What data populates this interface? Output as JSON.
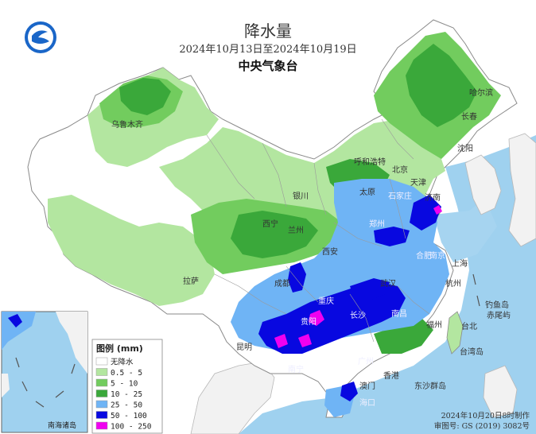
{
  "title": {
    "main": "降水量",
    "date_range": "2024年10月13日至2024年10月19日",
    "org": "中央气象台"
  },
  "legend": {
    "title": "图例 (mm)",
    "items": [
      {
        "label": "无降水",
        "color": "#ffffff"
      },
      {
        "label": "0.5 - 5",
        "color": "#b3e6a0"
      },
      {
        "label": "5 - 10",
        "color": "#72cc5e"
      },
      {
        "label": "10 - 25",
        "color": "#3aa83a"
      },
      {
        "label": "25 - 50",
        "color": "#6fb4f5"
      },
      {
        "label": "50 - 100",
        "color": "#0808e0"
      },
      {
        "label": "100 - 250",
        "color": "#f000f0"
      }
    ]
  },
  "cities": [
    {
      "name": "乌鲁木齐"
    },
    {
      "name": "呼和浩特"
    },
    {
      "name": "哈尔滨"
    },
    {
      "name": "长春"
    },
    {
      "name": "沈阳"
    },
    {
      "name": "北京"
    },
    {
      "name": "天津"
    },
    {
      "name": "银川"
    },
    {
      "name": "太原"
    },
    {
      "name": "石家庄"
    },
    {
      "name": "济南"
    },
    {
      "name": "西宁"
    },
    {
      "name": "兰州"
    },
    {
      "name": "郑州"
    },
    {
      "name": "西安"
    },
    {
      "name": "合肥"
    },
    {
      "name": "南京"
    },
    {
      "name": "上海"
    },
    {
      "name": "拉萨"
    },
    {
      "name": "成都"
    },
    {
      "name": "武汉"
    },
    {
      "name": "杭州"
    },
    {
      "name": "重庆"
    },
    {
      "name": "长沙"
    },
    {
      "name": "南昌"
    },
    {
      "name": "福州"
    },
    {
      "name": "台北"
    },
    {
      "name": "贵阳"
    },
    {
      "name": "昆明"
    },
    {
      "name": "南宁"
    },
    {
      "name": "广州"
    },
    {
      "name": "香港"
    },
    {
      "name": "澳门"
    },
    {
      "name": "海口"
    },
    {
      "name": "台湾岛"
    },
    {
      "name": "钓鱼岛"
    },
    {
      "name": "赤尾屿"
    },
    {
      "name": "东沙群岛"
    },
    {
      "name": "南海诸岛"
    }
  ],
  "footer": {
    "made": "2024年10月20日8时制作",
    "approval": "审图号: GS (2019) 3082号"
  },
  "colors": {
    "sea": "#9fd1ef",
    "foreign_land": "#f2f2f2",
    "dry": "#ffffff"
  }
}
